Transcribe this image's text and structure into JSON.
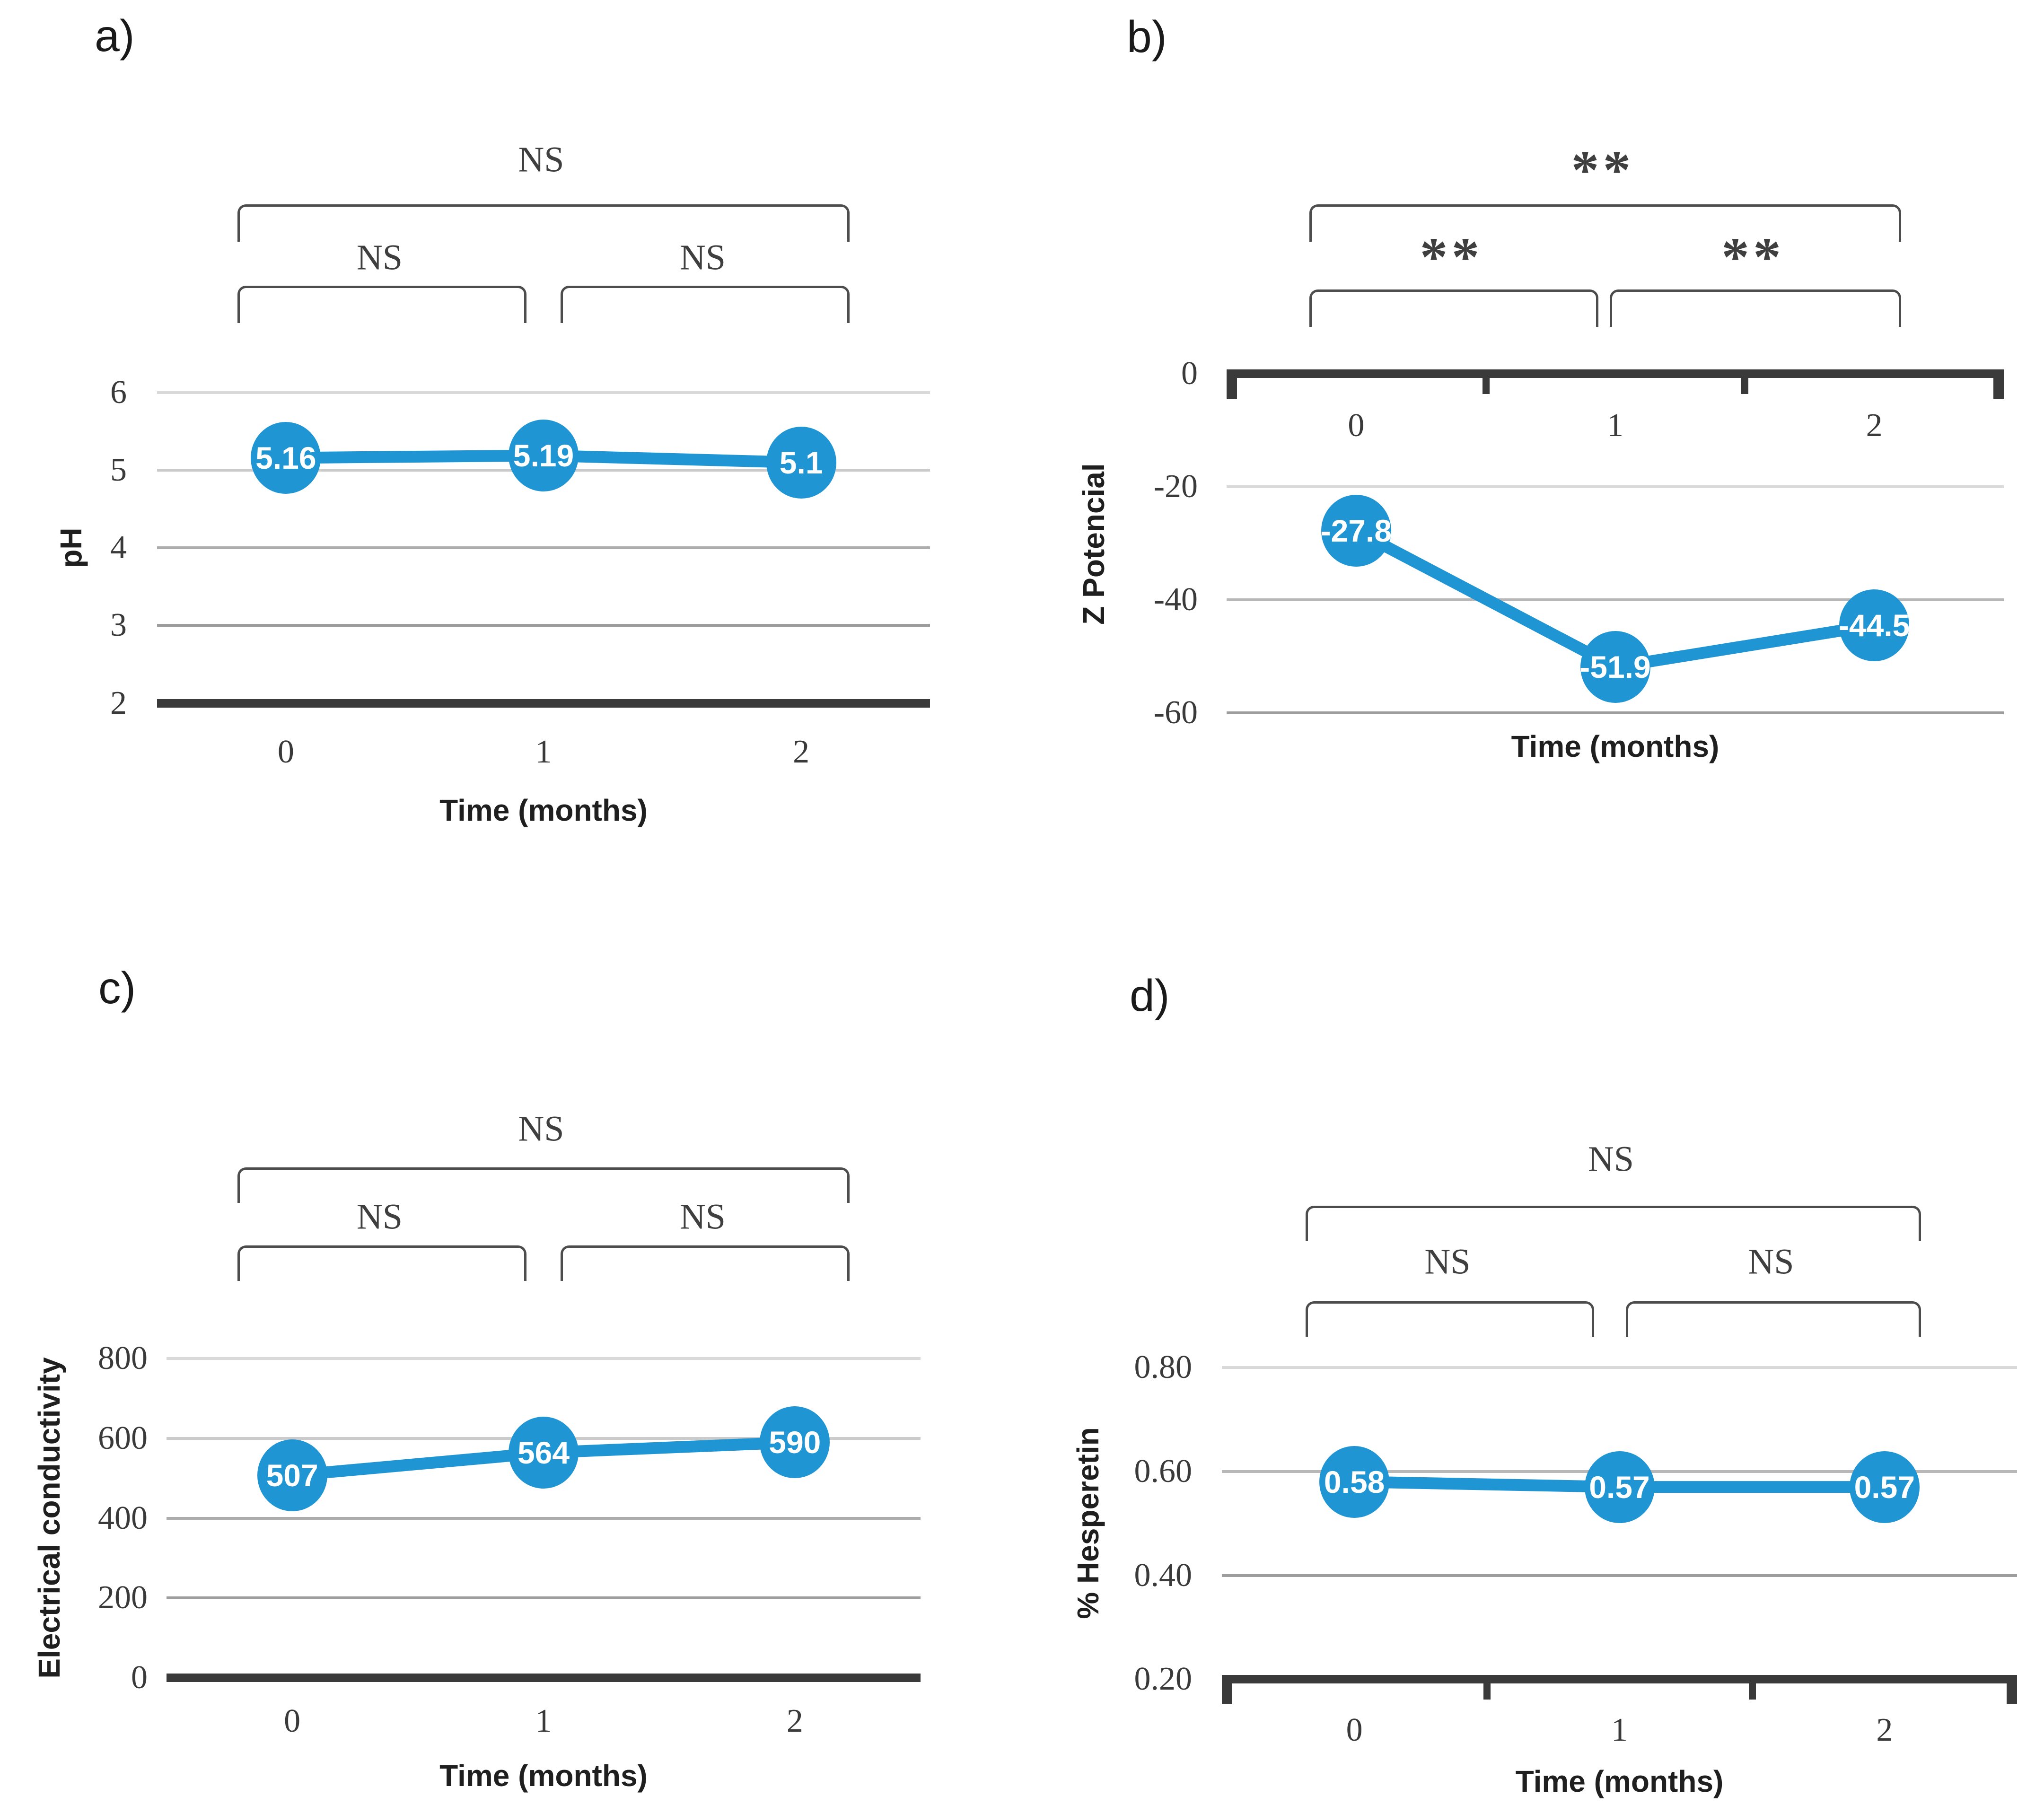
{
  "figure": {
    "description": "Four-panel stability line charts over storage time",
    "x_axis_title": "Time (months)"
  },
  "colors": {
    "background": "#FFFFFF",
    "series_blue": "#2095D3",
    "marker_label": "#FFFFFF",
    "axis_dark": "#3A3A3A",
    "bracket": "#4D4D4D",
    "tick_text": "#3A3A3A",
    "title_text": "#1F1F1F",
    "sig_text": "#3F3F3F",
    "panel_label_text": "#1A1A1A",
    "gridline_light": "#D9D9D9",
    "gridline_dark": "#9D9D9D"
  },
  "chart_data": [
    {
      "panel_label": "a)",
      "type": "line",
      "xlabel": "Time (months)",
      "ylabel": "pH",
      "categories": [
        "0",
        "1",
        "2"
      ],
      "values": [
        5.16,
        5.19,
        5.1
      ],
      "point_labels": [
        "5.16",
        "5.19",
        "5.1"
      ],
      "ylim": [
        2,
        6
      ],
      "yticks": [
        6,
        5,
        4,
        3,
        2
      ],
      "ytick_labels": [
        "6",
        "5",
        "4",
        "3",
        "2"
      ],
      "axis_side": "bottom",
      "grid": true,
      "legend": false,
      "significance": {
        "overall": "NS",
        "pair_left": "NS",
        "pair_right": "NS"
      }
    },
    {
      "panel_label": "b)",
      "type": "line",
      "xlabel": "Time (months)",
      "ylabel": "Z Potencial",
      "categories": [
        "0",
        "1",
        "2"
      ],
      "values": [
        -27.8,
        -51.9,
        -44.5
      ],
      "point_labels": [
        "-27.8",
        "-51.9",
        "-44.5"
      ],
      "ylim": [
        -60,
        0
      ],
      "yticks": [
        0,
        -20,
        -40,
        -60
      ],
      "ytick_labels": [
        "0",
        "-20",
        "-40",
        "-60"
      ],
      "axis_side": "top",
      "grid": true,
      "legend": false,
      "significance": {
        "overall": "**",
        "pair_left": "**",
        "pair_right": "**"
      }
    },
    {
      "panel_label": "c)",
      "type": "line",
      "xlabel": "Time (months)",
      "ylabel": "Electrical conductivity",
      "categories": [
        "0",
        "1",
        "2"
      ],
      "values": [
        507,
        564,
        590
      ],
      "point_labels": [
        "507",
        "564",
        "590"
      ],
      "ylim": [
        0,
        800
      ],
      "yticks": [
        800,
        600,
        400,
        200,
        0
      ],
      "ytick_labels": [
        "800",
        "600",
        "400",
        "200",
        "0"
      ],
      "axis_side": "bottom",
      "grid": true,
      "legend": false,
      "significance": {
        "overall": "NS",
        "pair_left": "NS",
        "pair_right": "NS"
      }
    },
    {
      "panel_label": "d)",
      "type": "line",
      "xlabel": "Time (months)",
      "ylabel": "% Hesperetin",
      "categories": [
        "0",
        "1",
        "2"
      ],
      "values": [
        0.58,
        0.57,
        0.57
      ],
      "point_labels": [
        "0.58",
        "0.57",
        "0.57"
      ],
      "ylim": [
        0.2,
        0.8
      ],
      "yticks": [
        0.8,
        0.6,
        0.4,
        0.2
      ],
      "ytick_labels": [
        "0.80",
        "0.60",
        "0.40",
        "0.20"
      ],
      "axis_side": "bottom",
      "grid": true,
      "legend": false,
      "significance": {
        "overall": "NS",
        "pair_left": "NS",
        "pair_right": "NS"
      }
    }
  ]
}
